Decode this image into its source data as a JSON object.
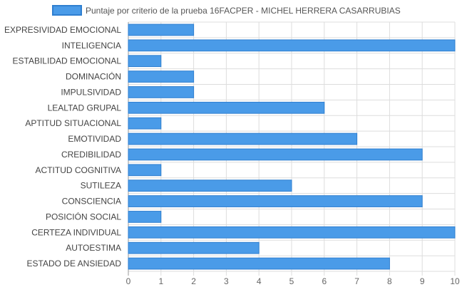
{
  "chart_data": {
    "type": "bar",
    "orientation": "horizontal",
    "title": "",
    "xlabel": "",
    "ylabel": "",
    "xlim": [
      0,
      10
    ],
    "x_ticks": [
      0,
      1,
      2,
      3,
      4,
      5,
      6,
      7,
      8,
      9,
      10
    ],
    "grid": true,
    "legend_position": "top",
    "categories": [
      "EXPRESIVIDAD EMOCIONAL",
      "INTELIGENCIA",
      "ESTABILIDAD EMOCIONAL",
      "DOMINACIÓN",
      "IMPULSIVIDAD",
      "LEALTAD GRUPAL",
      "APTITUD SITUACIONAL",
      "EMOTIVIDAD",
      "CREDIBILIDAD",
      "ACTITUD COGNITIVA",
      "SUTILEZA",
      "CONSCIENCIA",
      "POSICIÓN SOCIAL",
      "CERTEZA INDIVIDUAL",
      "AUTOESTIMA",
      "ESTADO DE ANSIEDAD"
    ],
    "series": [
      {
        "name": "Puntaje por criterio de la prueba 16FACPER - MICHEL HERRERA CASARRUBIAS",
        "color": "#4a9be8",
        "border_color": "#2f7fd0",
        "values": [
          2,
          10,
          1,
          2,
          2,
          6,
          1,
          7,
          9,
          1,
          5,
          9,
          1,
          10,
          4,
          8
        ]
      }
    ]
  }
}
